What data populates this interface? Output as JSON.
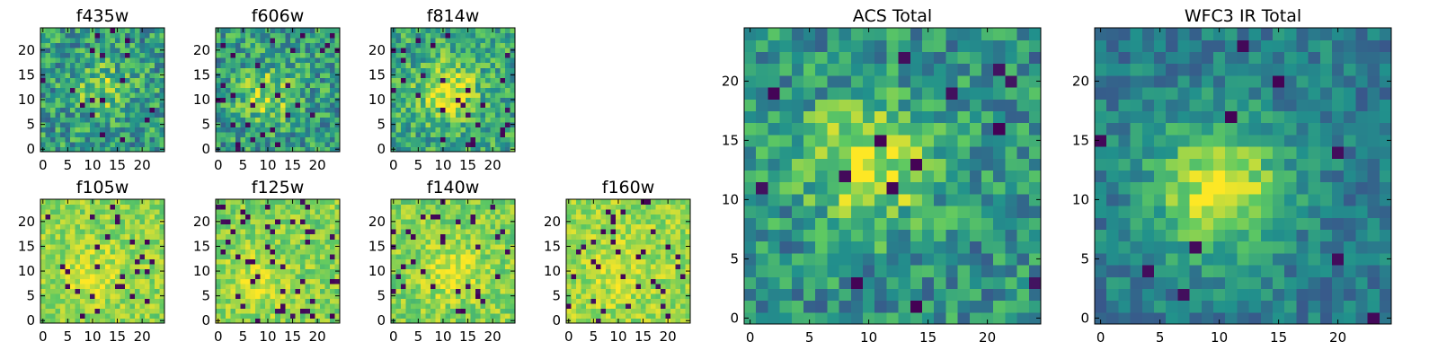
{
  "figure": {
    "background": "#ffffff",
    "colormap": "viridis",
    "colormap_stops": [
      "#440154",
      "#3b528b",
      "#21918c",
      "#5ec962",
      "#fde725"
    ]
  },
  "chart_data": [
    {
      "type": "heatmap",
      "title": "f435w",
      "grid_size": 25,
      "xlim": [
        0,
        24
      ],
      "ylim": [
        0,
        24
      ],
      "xticks": [
        0,
        5,
        10,
        15,
        20
      ],
      "yticks": [
        0,
        5,
        10,
        15,
        20
      ],
      "grid": false,
      "contrast": 0.55,
      "peak_strength": 0.25,
      "noise_amplitude": 0.5,
      "peak_center": [
        12,
        12
      ],
      "dark_pixel_rate": 0.02,
      "seed": 11
    },
    {
      "type": "heatmap",
      "title": "f606w",
      "grid_size": 25,
      "xlim": [
        0,
        24
      ],
      "ylim": [
        0,
        24
      ],
      "xticks": [
        0,
        5,
        10,
        15,
        20
      ],
      "yticks": [
        0,
        5,
        10,
        15,
        20
      ],
      "grid": false,
      "contrast": 0.55,
      "peak_strength": 0.3,
      "noise_amplitude": 0.5,
      "peak_center": [
        10,
        11
      ],
      "dark_pixel_rate": 0.04,
      "seed": 23
    },
    {
      "type": "heatmap",
      "title": "f814w",
      "grid_size": 25,
      "xlim": [
        0,
        24
      ],
      "ylim": [
        0,
        24
      ],
      "xticks": [
        0,
        5,
        10,
        15,
        20
      ],
      "yticks": [
        0,
        5,
        10,
        15,
        20
      ],
      "grid": false,
      "contrast": 0.6,
      "peak_strength": 0.4,
      "noise_amplitude": 0.45,
      "peak_center": [
        11,
        12
      ],
      "dark_pixel_rate": 0.03,
      "seed": 37
    },
    {
      "type": "heatmap",
      "title": "f105w",
      "grid_size": 25,
      "xlim": [
        0,
        24
      ],
      "ylim": [
        0,
        24
      ],
      "xticks": [
        0,
        5,
        10,
        15,
        20
      ],
      "yticks": [
        0,
        5,
        10,
        15,
        20
      ],
      "grid": false,
      "contrast": 0.82,
      "peak_strength": 0.15,
      "noise_amplitude": 0.25,
      "peak_center": [
        10,
        9
      ],
      "dark_pixel_rate": 0.04,
      "seed": 51
    },
    {
      "type": "heatmap",
      "title": "f125w",
      "grid_size": 25,
      "xlim": [
        0,
        24
      ],
      "ylim": [
        0,
        24
      ],
      "xticks": [
        0,
        5,
        10,
        15,
        20
      ],
      "yticks": [
        0,
        5,
        10,
        15,
        20
      ],
      "grid": false,
      "contrast": 0.8,
      "peak_strength": 0.15,
      "noise_amplitude": 0.28,
      "peak_center": [
        8,
        8
      ],
      "dark_pixel_rate": 0.07,
      "seed": 67
    },
    {
      "type": "heatmap",
      "title": "f140w",
      "grid_size": 25,
      "xlim": [
        0,
        24
      ],
      "ylim": [
        0,
        24
      ],
      "xticks": [
        0,
        5,
        10,
        15,
        20
      ],
      "yticks": [
        0,
        5,
        10,
        15,
        20
      ],
      "grid": false,
      "contrast": 0.8,
      "peak_strength": 0.15,
      "noise_amplitude": 0.28,
      "peak_center": [
        12,
        10
      ],
      "dark_pixel_rate": 0.06,
      "seed": 79
    },
    {
      "type": "heatmap",
      "title": "f160w",
      "grid_size": 25,
      "xlim": [
        0,
        24
      ],
      "ylim": [
        0,
        24
      ],
      "xticks": [
        0,
        5,
        10,
        15,
        20
      ],
      "yticks": [
        0,
        5,
        10,
        15,
        20
      ],
      "grid": false,
      "contrast": 0.84,
      "peak_strength": 0.1,
      "noise_amplitude": 0.25,
      "peak_center": [
        10,
        10
      ],
      "dark_pixel_rate": 0.06,
      "seed": 97
    },
    {
      "type": "heatmap",
      "title": "ACS Total",
      "grid_size": 25,
      "xlim": [
        0,
        24
      ],
      "ylim": [
        0,
        24
      ],
      "xticks": [
        0,
        5,
        10,
        15,
        20
      ],
      "yticks": [
        0,
        5,
        10,
        15,
        20
      ],
      "grid": false,
      "contrast": 0.5,
      "peak_strength": 0.45,
      "noise_amplitude": 0.45,
      "peak_center": [
        10,
        13
      ],
      "dark_pixel_rate": 0.025,
      "seed": 113
    },
    {
      "type": "heatmap",
      "title": "WFC3 IR Total",
      "grid_size": 25,
      "xlim": [
        0,
        24
      ],
      "ylim": [
        0,
        24
      ],
      "xticks": [
        0,
        5,
        10,
        15,
        20
      ],
      "yticks": [
        0,
        5,
        10,
        15,
        20
      ],
      "grid": false,
      "contrast": 0.42,
      "peak_strength": 0.55,
      "noise_amplitude": 0.3,
      "peak_center": [
        10,
        11
      ],
      "dark_pixel_rate": 0.02,
      "seed": 131
    }
  ]
}
